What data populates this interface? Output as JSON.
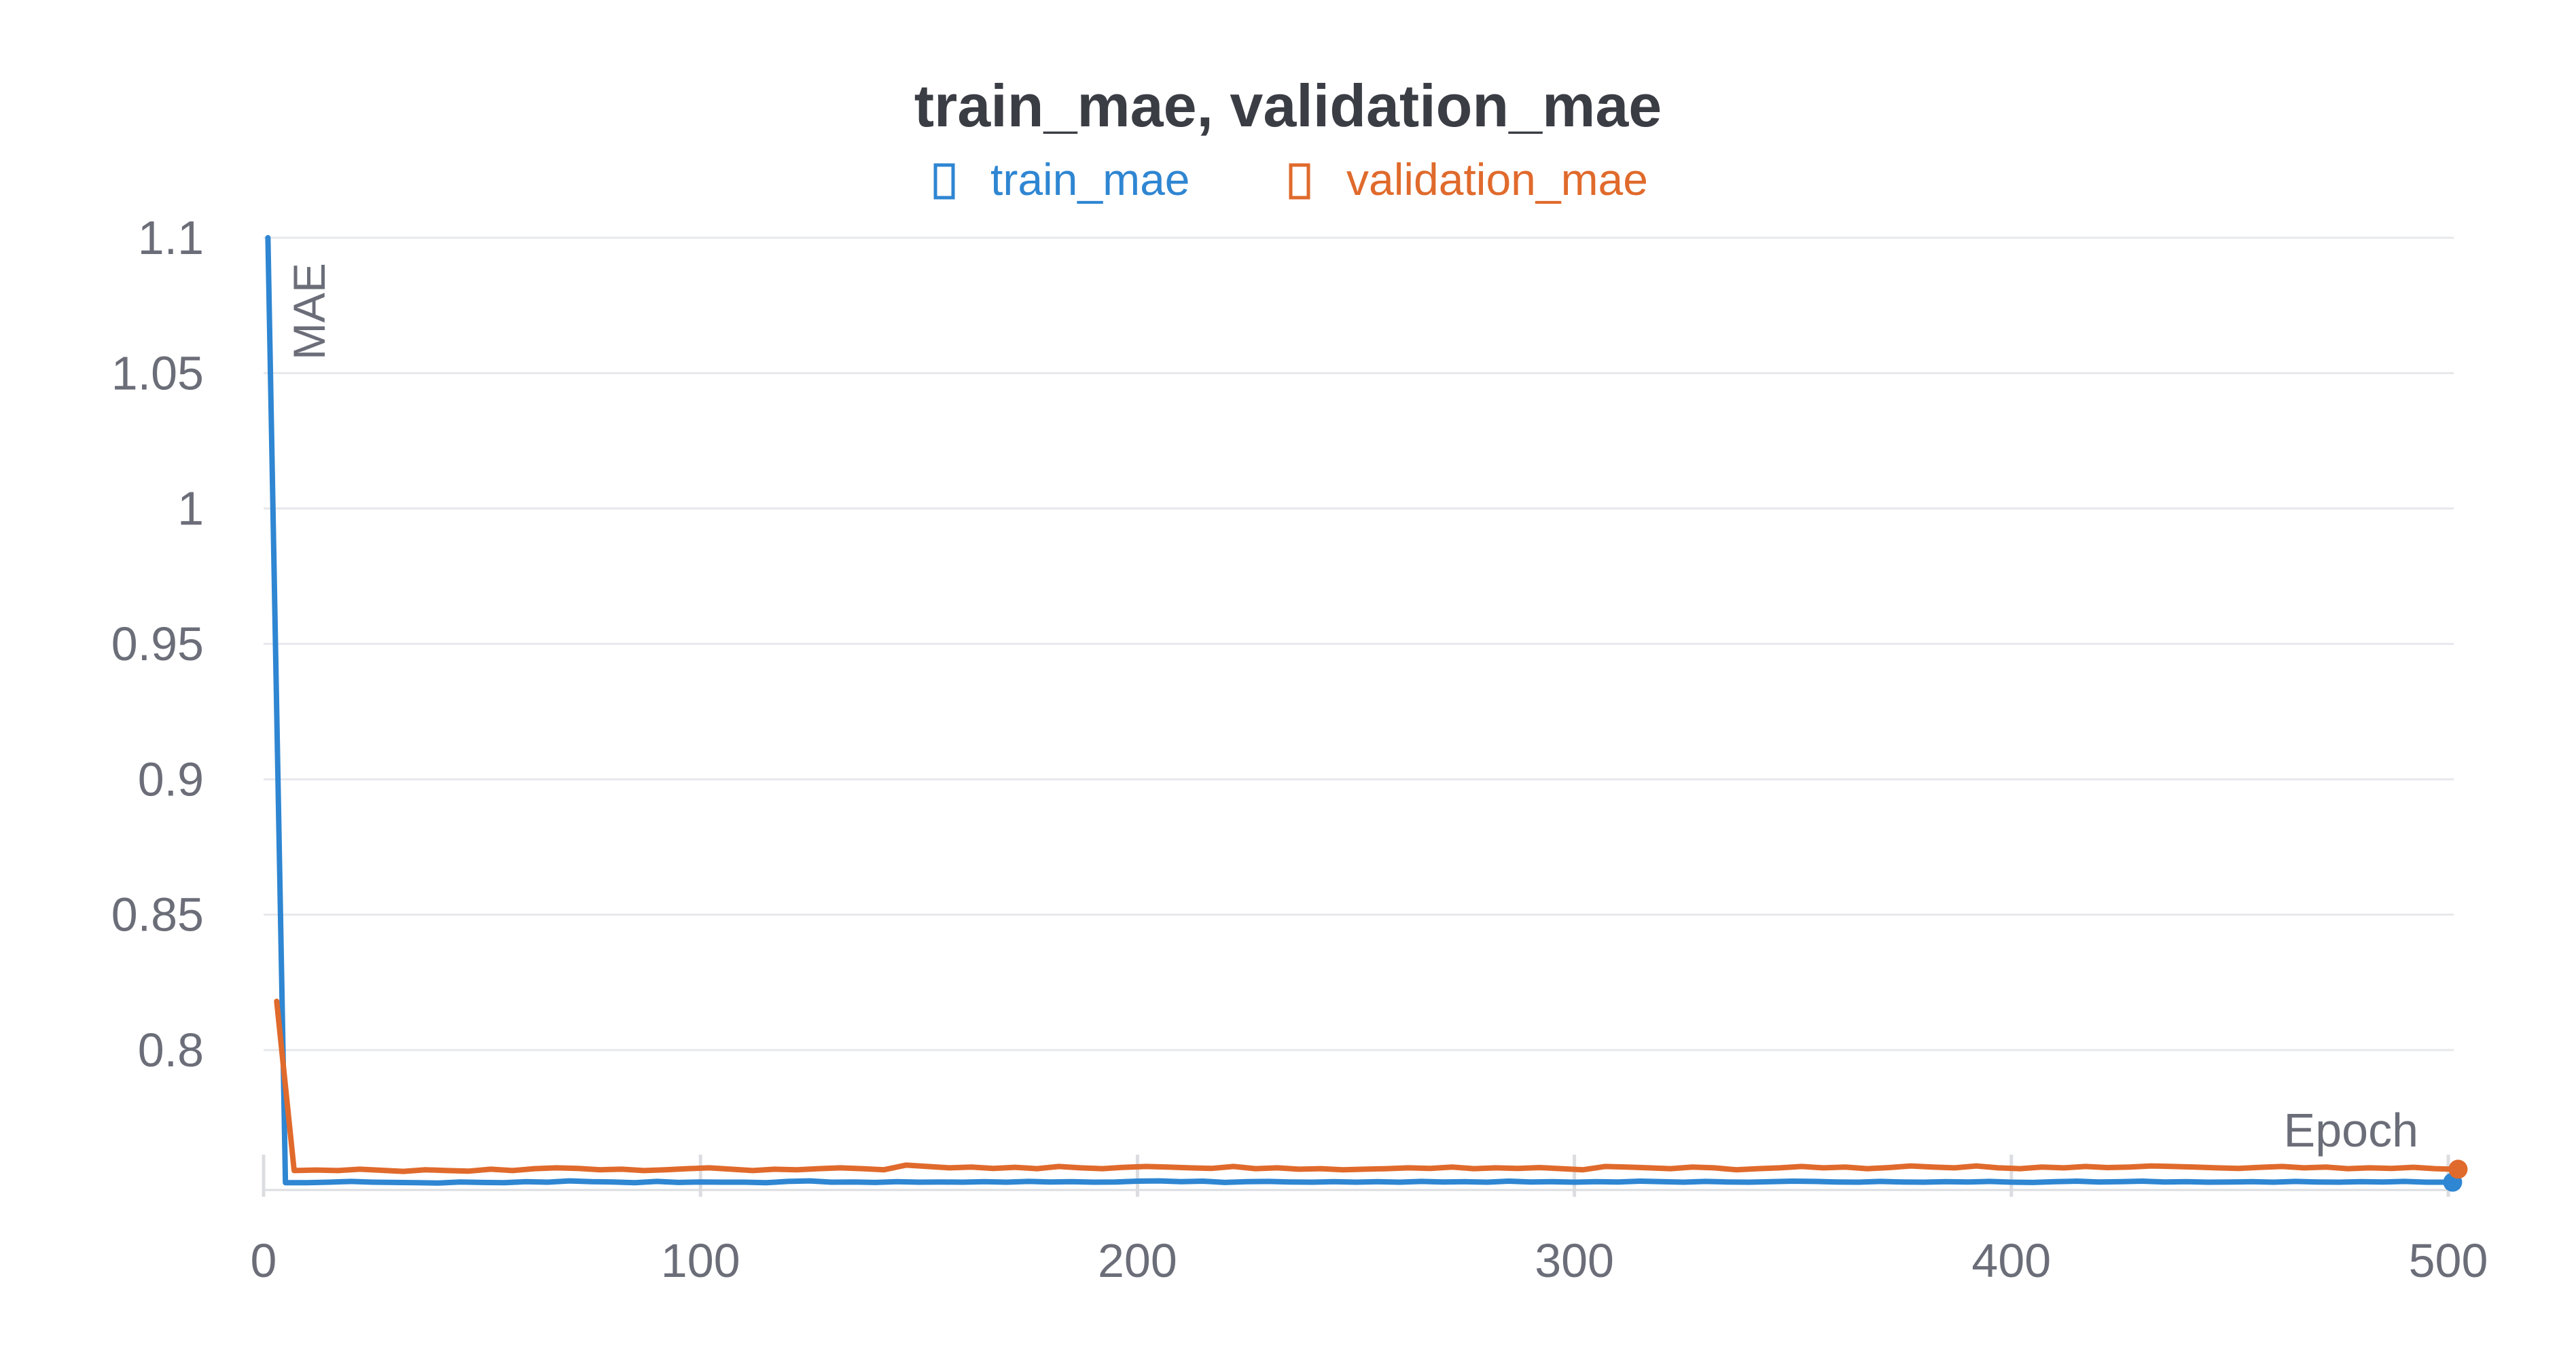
{
  "chart_data": {
    "type": "line",
    "title": "train_mae, validation_mae",
    "xlabel": "Epoch",
    "ylabel": "MAE",
    "xlim": [
      0,
      500
    ],
    "ylim": [
      0.76,
      1.1
    ],
    "x_ticks": [
      "0",
      "100",
      "200",
      "300",
      "400",
      "500"
    ],
    "y_ticks": [
      "1.1",
      "1.05",
      "1",
      "0.95",
      "0.9",
      "0.85",
      "0.8"
    ],
    "grid": true,
    "legend_position": "top-center",
    "series": [
      {
        "name": "train_mae",
        "color": "#2f86d2",
        "points": [
          [
            1,
            1.1
          ],
          [
            5,
            0.751
          ],
          [
            10,
            0.751
          ],
          [
            15,
            0.7512
          ],
          [
            20,
            0.7515
          ],
          [
            25,
            0.7512
          ],
          [
            30,
            0.7511
          ],
          [
            35,
            0.751
          ],
          [
            40,
            0.7509
          ],
          [
            45,
            0.7513
          ],
          [
            50,
            0.7511
          ],
          [
            55,
            0.751
          ],
          [
            60,
            0.7514
          ],
          [
            65,
            0.7512
          ],
          [
            70,
            0.7517
          ],
          [
            75,
            0.7514
          ],
          [
            80,
            0.7513
          ],
          [
            85,
            0.751
          ],
          [
            90,
            0.7515
          ],
          [
            95,
            0.7511
          ],
          [
            100,
            0.7513
          ],
          [
            105,
            0.7512
          ],
          [
            110,
            0.7512
          ],
          [
            115,
            0.751
          ],
          [
            120,
            0.7515
          ],
          [
            125,
            0.7517
          ],
          [
            130,
            0.7512
          ],
          [
            135,
            0.7513
          ],
          [
            140,
            0.7511
          ],
          [
            145,
            0.7514
          ],
          [
            150,
            0.7512
          ],
          [
            155,
            0.7513
          ],
          [
            160,
            0.7512
          ],
          [
            165,
            0.7514
          ],
          [
            170,
            0.7512
          ],
          [
            175,
            0.7515
          ],
          [
            180,
            0.7513
          ],
          [
            185,
            0.7514
          ],
          [
            190,
            0.7512
          ],
          [
            195,
            0.7513
          ],
          [
            200,
            0.7516
          ],
          [
            205,
            0.7517
          ],
          [
            210,
            0.7514
          ],
          [
            215,
            0.7516
          ],
          [
            220,
            0.7511
          ],
          [
            225,
            0.7514
          ],
          [
            230,
            0.7515
          ],
          [
            235,
            0.7513
          ],
          [
            240,
            0.7512
          ],
          [
            245,
            0.7514
          ],
          [
            250,
            0.7512
          ],
          [
            255,
            0.7514
          ],
          [
            260,
            0.7512
          ],
          [
            265,
            0.7515
          ],
          [
            270,
            0.7513
          ],
          [
            275,
            0.7514
          ],
          [
            280,
            0.7512
          ],
          [
            285,
            0.7516
          ],
          [
            290,
            0.7513
          ],
          [
            295,
            0.7514
          ],
          [
            300,
            0.7512
          ],
          [
            305,
            0.7514
          ],
          [
            310,
            0.7513
          ],
          [
            315,
            0.7516
          ],
          [
            320,
            0.7514
          ],
          [
            325,
            0.7512
          ],
          [
            330,
            0.7515
          ],
          [
            335,
            0.7513
          ],
          [
            340,
            0.7512
          ],
          [
            345,
            0.7514
          ],
          [
            350,
            0.7516
          ],
          [
            355,
            0.7515
          ],
          [
            360,
            0.7513
          ],
          [
            365,
            0.7512
          ],
          [
            370,
            0.7515
          ],
          [
            375,
            0.7513
          ],
          [
            380,
            0.7512
          ],
          [
            385,
            0.7514
          ],
          [
            390,
            0.7513
          ],
          [
            395,
            0.7515
          ],
          [
            400,
            0.7512
          ],
          [
            405,
            0.7511
          ],
          [
            410,
            0.7514
          ],
          [
            415,
            0.7516
          ],
          [
            420,
            0.7513
          ],
          [
            425,
            0.7514
          ],
          [
            430,
            0.7516
          ],
          [
            435,
            0.7513
          ],
          [
            440,
            0.7514
          ],
          [
            445,
            0.7512
          ],
          [
            450,
            0.7513
          ],
          [
            455,
            0.7514
          ],
          [
            460,
            0.7512
          ],
          [
            465,
            0.7515
          ],
          [
            470,
            0.7513
          ],
          [
            475,
            0.7512
          ],
          [
            480,
            0.7514
          ],
          [
            485,
            0.7513
          ],
          [
            490,
            0.7515
          ],
          [
            495,
            0.7512
          ],
          [
            501,
            0.7512
          ]
        ]
      },
      {
        "name": "validation_mae",
        "color": "#e06a2c",
        "points": [
          [
            3,
            0.818
          ],
          [
            7,
            0.7555
          ],
          [
            12,
            0.7557
          ],
          [
            17,
            0.7555
          ],
          [
            22,
            0.756
          ],
          [
            27,
            0.7556
          ],
          [
            32,
            0.7552
          ],
          [
            37,
            0.7558
          ],
          [
            42,
            0.7555
          ],
          [
            47,
            0.7553
          ],
          [
            52,
            0.756
          ],
          [
            57,
            0.7555
          ],
          [
            62,
            0.7562
          ],
          [
            67,
            0.7565
          ],
          [
            72,
            0.7563
          ],
          [
            77,
            0.7558
          ],
          [
            82,
            0.756
          ],
          [
            87,
            0.7555
          ],
          [
            92,
            0.7558
          ],
          [
            97,
            0.7562
          ],
          [
            102,
            0.7565
          ],
          [
            107,
            0.756
          ],
          [
            112,
            0.7555
          ],
          [
            117,
            0.756
          ],
          [
            122,
            0.7558
          ],
          [
            127,
            0.7562
          ],
          [
            132,
            0.7565
          ],
          [
            137,
            0.7562
          ],
          [
            142,
            0.7558
          ],
          [
            147,
            0.7575
          ],
          [
            152,
            0.757
          ],
          [
            157,
            0.7565
          ],
          [
            162,
            0.7568
          ],
          [
            167,
            0.7563
          ],
          [
            172,
            0.7567
          ],
          [
            177,
            0.7562
          ],
          [
            182,
            0.757
          ],
          [
            187,
            0.7565
          ],
          [
            192,
            0.7562
          ],
          [
            197,
            0.7567
          ],
          [
            202,
            0.757
          ],
          [
            207,
            0.7568
          ],
          [
            212,
            0.7565
          ],
          [
            217,
            0.7563
          ],
          [
            222,
            0.757
          ],
          [
            227,
            0.7562
          ],
          [
            232,
            0.7565
          ],
          [
            237,
            0.756
          ],
          [
            242,
            0.7562
          ],
          [
            247,
            0.7558
          ],
          [
            252,
            0.756
          ],
          [
            257,
            0.7562
          ],
          [
            262,
            0.7565
          ],
          [
            267,
            0.7563
          ],
          [
            272,
            0.7568
          ],
          [
            277,
            0.7562
          ],
          [
            282,
            0.7565
          ],
          [
            287,
            0.7563
          ],
          [
            292,
            0.7566
          ],
          [
            297,
            0.7562
          ],
          [
            302,
            0.7558
          ],
          [
            307,
            0.757
          ],
          [
            312,
            0.7568
          ],
          [
            317,
            0.7565
          ],
          [
            322,
            0.7562
          ],
          [
            327,
            0.7568
          ],
          [
            332,
            0.7565
          ],
          [
            337,
            0.7558
          ],
          [
            342,
            0.7562
          ],
          [
            347,
            0.7565
          ],
          [
            352,
            0.757
          ],
          [
            357,
            0.7565
          ],
          [
            362,
            0.7568
          ],
          [
            367,
            0.7562
          ],
          [
            372,
            0.7566
          ],
          [
            377,
            0.7572
          ],
          [
            382,
            0.7568
          ],
          [
            387,
            0.7565
          ],
          [
            392,
            0.7572
          ],
          [
            397,
            0.7565
          ],
          [
            402,
            0.7562
          ],
          [
            407,
            0.7568
          ],
          [
            412,
            0.7565
          ],
          [
            417,
            0.757
          ],
          [
            422,
            0.7566
          ],
          [
            427,
            0.7568
          ],
          [
            432,
            0.7572
          ],
          [
            437,
            0.757
          ],
          [
            442,
            0.7568
          ],
          [
            447,
            0.7565
          ],
          [
            452,
            0.7563
          ],
          [
            457,
            0.7567
          ],
          [
            462,
            0.757
          ],
          [
            467,
            0.7565
          ],
          [
            472,
            0.7568
          ],
          [
            477,
            0.7562
          ],
          [
            482,
            0.7565
          ],
          [
            487,
            0.7563
          ],
          [
            492,
            0.7567
          ],
          [
            497,
            0.7562
          ],
          [
            501,
            0.756
          ]
        ]
      }
    ]
  }
}
